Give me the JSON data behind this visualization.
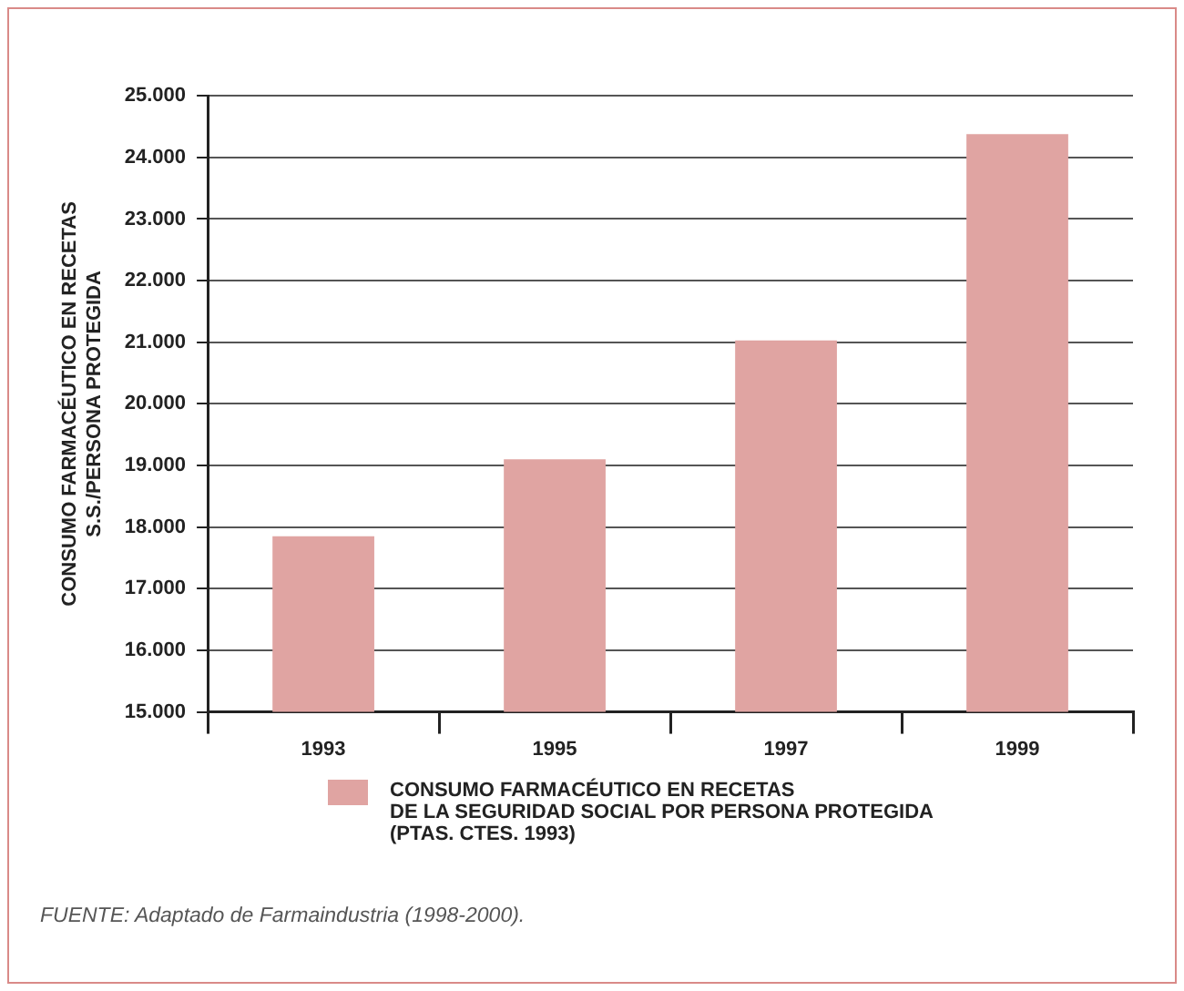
{
  "chart_data": {
    "type": "bar",
    "ylabel": "CONSUMO FARMACÉUTICO EN RECETAS\nS.S./PERSONA PROTEGIDA",
    "categories": [
      "1993",
      "1995",
      "1997",
      "1999"
    ],
    "series": [
      {
        "name": "CONSUMO FARMACÉUTICO EN RECETAS\nDE LA SEGURIDAD SOCIAL POR PERSONA PROTEGIDA\n(PTAS. CTES. 1993)",
        "color": "#e0a4a2",
        "values": [
          17850,
          19100,
          21030,
          24380
        ]
      }
    ],
    "ylim": [
      15000,
      25000
    ],
    "yticks": [
      {
        "value": 15000,
        "label": "15.000"
      },
      {
        "value": 16000,
        "label": "16.000"
      },
      {
        "value": 17000,
        "label": "17.000"
      },
      {
        "value": 18000,
        "label": "18.000"
      },
      {
        "value": 19000,
        "label": "19.000"
      },
      {
        "value": 20000,
        "label": "20.000"
      },
      {
        "value": 21000,
        "label": "21.000"
      },
      {
        "value": 22000,
        "label": "22.000"
      },
      {
        "value": 23000,
        "label": "23.000"
      },
      {
        "value": 24000,
        "label": "24.000"
      },
      {
        "value": 25000,
        "label": "25.000"
      }
    ],
    "grid": "y",
    "legend": "bottom",
    "annotations": [
      "FUENTE: Adaptado de Farmaindustria (1998-2000)."
    ]
  }
}
